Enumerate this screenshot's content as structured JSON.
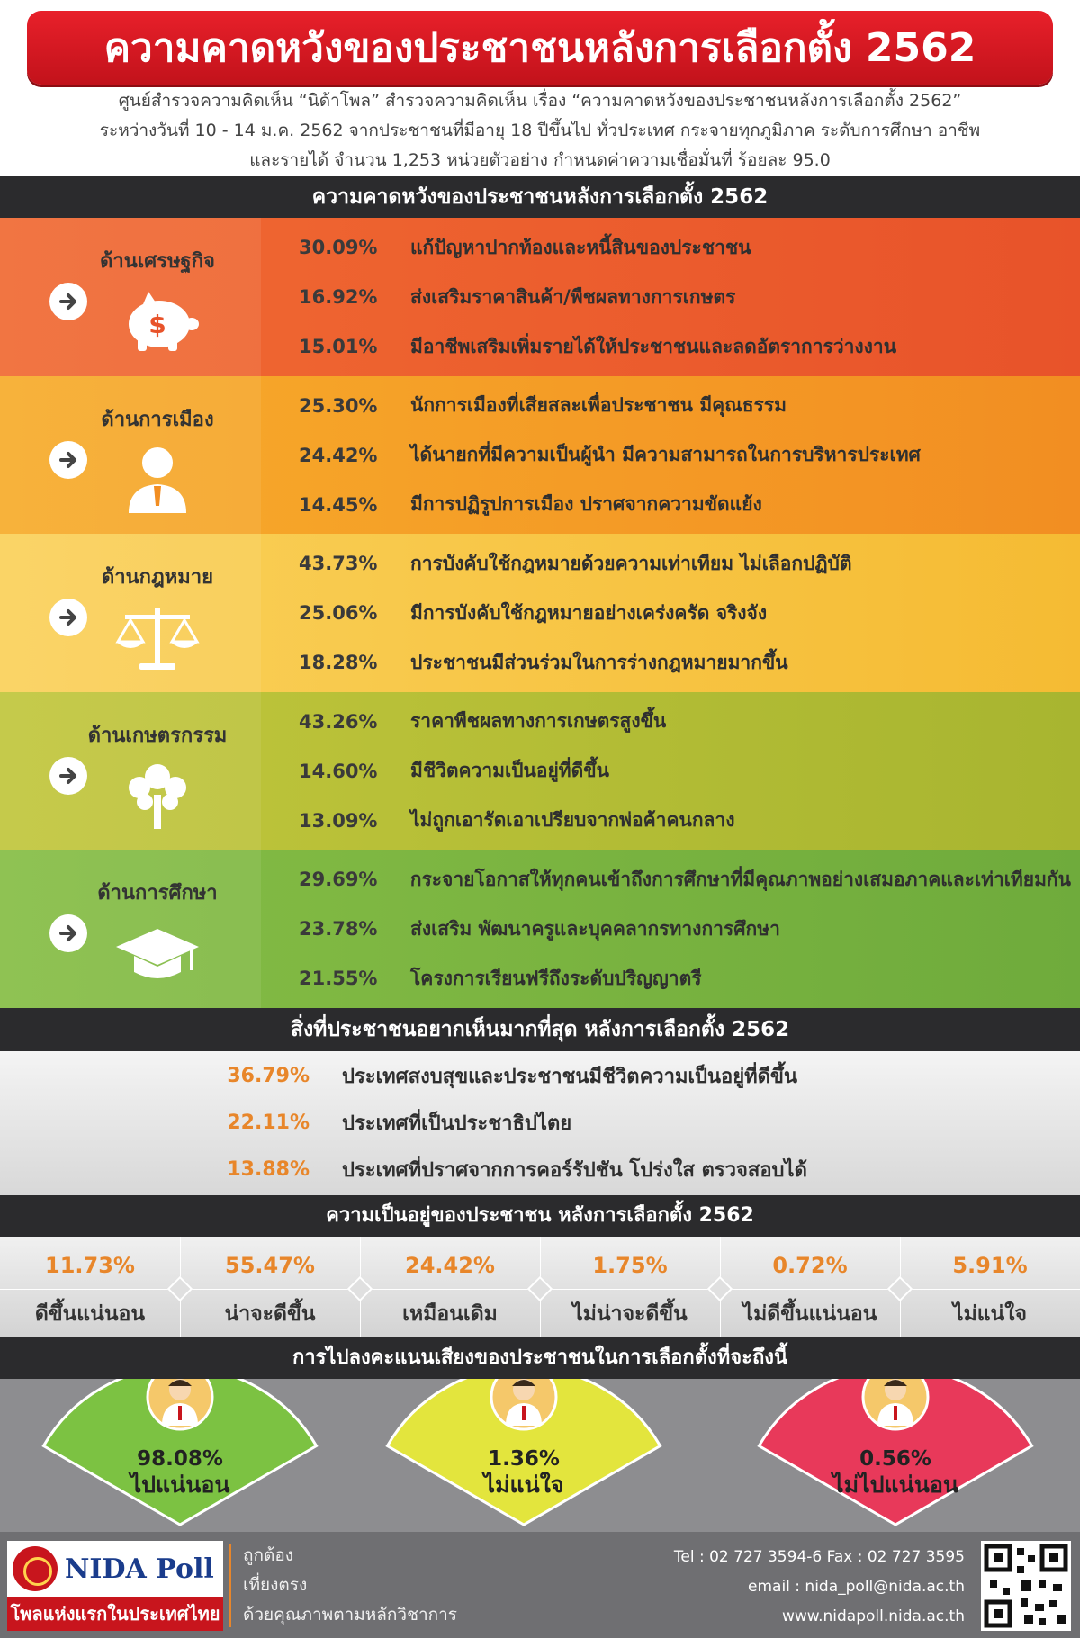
{
  "header": {
    "title": "ความคาดหวังของประชาชนหลังการเลือกตั้ง 2562",
    "intro": [
      "ศูนย์สำรวจความคิดเห็น “นิด้าโพล” สำรวจความคิดเห็น เรื่อง “ความคาดหวังของประชาชนหลังการเลือกตั้ง 2562”",
      "ระหว่างวันที่ 10 - 14 ม.ค. 2562 จากประชาชนที่มีอายุ 18 ปีขึ้นไป ทั่วประเทศ กระจายทุกภูมิภาค ระดับการศึกษา อาชีพ",
      "และรายได้ จำนวน 1,253 หน่วยตัวอย่าง กำหนดค่าความเชื่อมั่นที่ ร้อยละ 95.0"
    ]
  },
  "sections": {
    "expectations": "ความคาดหวังของประชาชนหลังการเลือกตั้ง 2562",
    "most_wanted": "สิ่งที่ประชาชนอยากเห็นมากที่สุด หลังการเลือกตั้ง 2562",
    "wellbeing": "ความเป็นอยู่ของประชาชน หลังการเลือกตั้ง 2562",
    "voting": "การไปลงคะแนนเสียงของประชาชนในการเลือกตั้งที่จะถึงนี้"
  },
  "colors": {
    "economy": "#ee5a2b",
    "politics": "#f39a25",
    "law": "#f7c33a",
    "agriculture": "#b5bd34",
    "education": "#7ab241",
    "vote_sure": "#7cc242",
    "vote_unsure": "#e3e53d",
    "vote_no": "#e8395a",
    "accent_pct": "#e8862a"
  },
  "chart_data": [
    {
      "type": "table",
      "title": "ความคาดหวังของประชาชนหลังการเลือกตั้ง 2562",
      "categories": [
        {
          "name": "ด้านเศรษฐกิจ",
          "icon": "piggy-bank-icon",
          "items": [
            {
              "value": 30.09,
              "label": "30.09%",
              "text": "แก้ปัญหาปากท้องและหนี้สินของประชาชน"
            },
            {
              "value": 16.92,
              "label": "16.92%",
              "text": "ส่งเสริมราคาสินค้า/พืชผลทางการเกษตร"
            },
            {
              "value": 15.01,
              "label": "15.01%",
              "text": "มีอาชีพเสริมเพิ่มรายได้ให้ประชาชนและลดอัตราการว่างงาน"
            }
          ]
        },
        {
          "name": "ด้านการเมือง",
          "icon": "politician-icon",
          "items": [
            {
              "value": 25.3,
              "label": "25.30%",
              "text": "นักการเมืองที่เสียสละเพื่อประชาชน มีคุณธรรม"
            },
            {
              "value": 24.42,
              "label": "24.42%",
              "text": "ได้นายกที่มีความเป็นผู้นำ มีความสามารถในการบริหารประเทศ"
            },
            {
              "value": 14.45,
              "label": "14.45%",
              "text": "มีการปฏิรูปการเมือง ปราศจากความขัดแย้ง"
            }
          ]
        },
        {
          "name": "ด้านกฎหมาย",
          "icon": "scales-icon",
          "items": [
            {
              "value": 43.73,
              "label": "43.73%",
              "text": "การบังคับใช้กฎหมายด้วยความเท่าเทียม ไม่เลือกปฏิบัติ"
            },
            {
              "value": 25.06,
              "label": "25.06%",
              "text": "มีการบังคับใช้กฎหมายอย่างเคร่งครัด จริงจัง"
            },
            {
              "value": 18.28,
              "label": "18.28%",
              "text": "ประชาชนมีส่วนร่วมในการร่างกฎหมายมากขึ้น"
            }
          ]
        },
        {
          "name": "ด้านเกษตรกรรม",
          "icon": "tree-icon",
          "items": [
            {
              "value": 43.26,
              "label": "43.26%",
              "text": "ราคาพืชผลทางการเกษตรสูงขึ้น"
            },
            {
              "value": 14.6,
              "label": "14.60%",
              "text": "มีชีวิตความเป็นอยู่ที่ดีขึ้น"
            },
            {
              "value": 13.09,
              "label": "13.09%",
              "text": "ไม่ถูกเอารัดเอาเปรียบจากพ่อค้าคนกลาง"
            }
          ]
        },
        {
          "name": "ด้านการศึกษา",
          "icon": "graduation-cap-icon",
          "items": [
            {
              "value": 29.69,
              "label": "29.69%",
              "text": "กระจายโอกาสให้ทุกคนเข้าถึงการศึกษาที่มีคุณภาพอย่างเสมอภาคและเท่าเทียมกัน"
            },
            {
              "value": 23.78,
              "label": "23.78%",
              "text": "ส่งเสริม พัฒนาครูและบุคคลากรทางการศึกษา"
            },
            {
              "value": 21.55,
              "label": "21.55%",
              "text": "โครงการเรียนฟรีถึงระดับปริญญาตรี"
            }
          ]
        }
      ]
    },
    {
      "type": "table",
      "title": "สิ่งที่ประชาชนอยากเห็นมากที่สุด หลังการเลือกตั้ง 2562",
      "items": [
        {
          "value": 36.79,
          "label": "36.79%",
          "text": "ประเทศสงบสุขและประชาชนมีชีวิตความเป็นอยู่ที่ดีขึ้น"
        },
        {
          "value": 22.11,
          "label": "22.11%",
          "text": "ประเทศที่เป็นประชาธิปไตย"
        },
        {
          "value": 13.88,
          "label": "13.88%",
          "text": "ประเทศที่ปราศจากการคอร์รัปชัน โปร่งใส ตรวจสอบได้"
        }
      ]
    },
    {
      "type": "table",
      "title": "ความเป็นอยู่ของประชาชน หลังการเลือกตั้ง 2562",
      "categories": [
        "ดีขึ้นแน่นอน",
        "น่าจะดีขึ้น",
        "เหมือนเดิม",
        "ไม่น่าจะดีขึ้น",
        "ไม่ดีขึ้นแน่นอน",
        "ไม่แน่ใจ"
      ],
      "values": [
        11.73,
        55.47,
        24.42,
        1.75,
        0.72,
        5.91
      ],
      "labels": [
        "11.73%",
        "55.47%",
        "24.42%",
        "1.75%",
        "0.72%",
        "5.91%"
      ]
    },
    {
      "type": "pie",
      "title": "การไปลงคะแนนเสียงของประชาชนในการเลือกตั้งที่จะถึงนี้",
      "categories": [
        "ไปแน่นอน",
        "ไม่แน่ใจ",
        "ไม่ไปแน่นอน"
      ],
      "values": [
        98.08,
        1.36,
        0.56
      ],
      "labels": [
        "98.08%",
        "1.36%",
        "0.56%"
      ]
    }
  ],
  "footer": {
    "logo_name": "NIDA Poll",
    "logo_tagline": "โพลแห่งแรกในประเทศไทย",
    "slogan": [
      "ถูกต้อง",
      "เที่ยงตรง",
      "ด้วยคุณภาพตามหลักวิชาการ"
    ],
    "contact": [
      "Tel : 02 727 3594-6 Fax : 02 727 3595",
      "email : nida_poll@nida.ac.th",
      "www.nidapoll.nida.ac.th"
    ]
  }
}
